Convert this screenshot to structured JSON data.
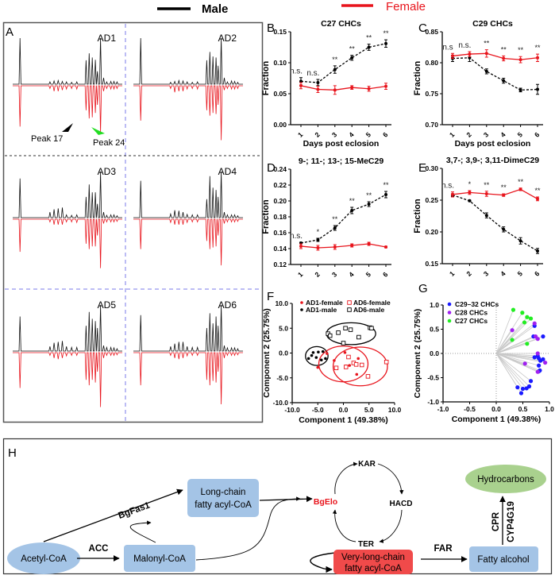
{
  "legend": {
    "male": "Male",
    "female": "Female",
    "male_color": "#000000",
    "female_color": "#e8141c"
  },
  "panel_labels": {
    "A": "A",
    "B": "B",
    "C": "C",
    "D": "D",
    "E": "E",
    "F": "F",
    "G": "G",
    "H": "H"
  },
  "panel_a": {
    "subpanels": [
      "AD1",
      "AD2",
      "AD3",
      "AD4",
      "AD5",
      "AD6"
    ],
    "annotations": {
      "peak17": "Peak 17",
      "peak24": "Peak 24"
    },
    "peak_positions": [
      0.04,
      0.33,
      0.37,
      0.41,
      0.45,
      0.49,
      0.54,
      0.59,
      0.68,
      0.71,
      0.74,
      0.77,
      0.79,
      0.82,
      0.85,
      0.88,
      0.92,
      0.95,
      0.98
    ],
    "male_heights": [
      [
        1,
        0.05,
        0.07,
        0.08,
        0.06,
        0.05,
        0.04,
        0.05,
        0.52,
        0.67,
        0.58,
        0.53,
        0.28,
        1,
        0.14,
        0.05,
        0.06,
        0.06,
        0.05
      ],
      [
        1,
        0.04,
        0.06,
        0.08,
        0.07,
        0.05,
        0.04,
        0.05,
        0.52,
        0.7,
        0.6,
        0.58,
        0.4,
        1,
        0.14,
        0.05,
        0.07,
        0.06,
        0.04
      ],
      [
        0.85,
        0.12,
        0.18,
        0.2,
        0.22,
        0.06,
        0.05,
        0.06,
        0.45,
        0.72,
        0.55,
        0.55,
        0.3,
        1,
        0.12,
        0.05,
        0.06,
        0.06,
        0.04
      ],
      [
        0.8,
        0.08,
        0.16,
        0.15,
        0.12,
        0.07,
        0.06,
        0.06,
        0.4,
        0.9,
        0.65,
        0.6,
        0.45,
        1,
        0.12,
        0.06,
        0.06,
        0.06,
        0.04
      ],
      [
        0.75,
        0.1,
        0.18,
        0.2,
        0.22,
        0.1,
        0.08,
        0.08,
        0.55,
        0.85,
        0.7,
        0.65,
        0.5,
        1,
        0.12,
        0.08,
        0.08,
        0.07,
        0.05
      ],
      [
        0.78,
        0.1,
        0.16,
        0.2,
        0.2,
        0.1,
        0.08,
        0.08,
        0.5,
        0.82,
        0.6,
        0.75,
        0.55,
        1,
        0.12,
        0.07,
        0.07,
        0.07,
        0.05
      ]
    ],
    "female_heights": [
      [
        0.75,
        0.05,
        0.1,
        0.1,
        0.08,
        0.06,
        0.05,
        0.06,
        0.45,
        0.6,
        0.58,
        0.5,
        0.35,
        0.87,
        0.1,
        0.05,
        0.06,
        0.06,
        0.05
      ],
      [
        0.64,
        0.05,
        0.12,
        0.1,
        0.1,
        0.06,
        0.05,
        0.06,
        0.45,
        0.55,
        0.5,
        0.52,
        0.35,
        1,
        0.08,
        0.05,
        0.06,
        0.06,
        0.05
      ],
      [
        0.6,
        0.05,
        0.1,
        0.1,
        0.1,
        0.05,
        0.05,
        0.06,
        0.45,
        0.55,
        0.5,
        0.5,
        0.3,
        0.9,
        0.08,
        0.05,
        0.05,
        0.05,
        0.04
      ],
      [
        0.55,
        0.06,
        0.1,
        0.1,
        0.1,
        0.06,
        0.05,
        0.05,
        0.4,
        0.55,
        0.52,
        0.5,
        0.3,
        0.85,
        0.08,
        0.05,
        0.05,
        0.05,
        0.04
      ],
      [
        0.65,
        0.05,
        0.1,
        0.12,
        0.1,
        0.06,
        0.05,
        0.05,
        0.5,
        0.6,
        0.5,
        0.55,
        0.35,
        1,
        0.1,
        0.05,
        0.05,
        0.05,
        0.04
      ],
      [
        0.6,
        0.05,
        0.1,
        0.12,
        0.1,
        0.06,
        0.05,
        0.05,
        0.5,
        0.6,
        0.52,
        0.55,
        0.35,
        0.95,
        0.1,
        0.05,
        0.05,
        0.05,
        0.04
      ]
    ]
  },
  "chart_data": [
    {
      "id": "B",
      "type": "line",
      "title": "C27 CHCs",
      "xlabel": "Days post eclosion",
      "ylabel": "Fraction",
      "categories": [
        "1",
        "2",
        "3",
        "4",
        "5",
        "6"
      ],
      "ylim": [
        0,
        0.15
      ],
      "yticks": [
        "0.00",
        "0.05",
        "0.10",
        "0.15"
      ],
      "series": [
        {
          "name": "Male",
          "values": [
            0.07,
            0.068,
            0.089,
            0.108,
            0.125,
            0.131
          ],
          "err": [
            0.006,
            0.005,
            0.006,
            0.004,
            0.005,
            0.006
          ]
        },
        {
          "name": "Female",
          "values": [
            0.063,
            0.057,
            0.056,
            0.06,
            0.058,
            0.062
          ],
          "err": [
            0.005,
            0.005,
            0.007,
            0.003,
            0.004,
            0.005
          ]
        }
      ],
      "significance": [
        "n.s.",
        "n.s.",
        "**",
        "**",
        "**",
        "**"
      ]
    },
    {
      "id": "C",
      "type": "line",
      "title": "C29 CHCs",
      "xlabel": "Days post eclosion",
      "ylabel": "Fraction",
      "categories": [
        "1",
        "2",
        "3",
        "4",
        "5",
        "6"
      ],
      "ylim": [
        0.7,
        0.85
      ],
      "yticks": [
        "0.70",
        "0.75",
        "0.80",
        "0.85"
      ],
      "series": [
        {
          "name": "Male",
          "values": [
            0.807,
            0.808,
            0.786,
            0.771,
            0.756,
            0.757
          ],
          "err": [
            0.005,
            0.006,
            0.004,
            0.004,
            0.003,
            0.008
          ]
        },
        {
          "name": "Female",
          "values": [
            0.811,
            0.814,
            0.815,
            0.807,
            0.805,
            0.808
          ],
          "err": [
            0.004,
            0.004,
            0.006,
            0.004,
            0.005,
            0.006
          ]
        }
      ],
      "significance": [
        "n.s",
        "n.s.",
        "**",
        "**",
        "**",
        "**"
      ]
    },
    {
      "id": "D",
      "type": "line",
      "title": "9-; 11-; 13-; 15-MeC29",
      "xlabel": "",
      "ylabel": "Fraction",
      "categories": [
        "1",
        "2",
        "3",
        "4",
        "5",
        "6"
      ],
      "ylim": [
        0.12,
        0.24
      ],
      "yticks": [
        "0.12",
        "0.14",
        "0.16",
        "0.18",
        "0.20",
        "0.22",
        "0.24"
      ],
      "series": [
        {
          "name": "Male",
          "values": [
            0.147,
            0.151,
            0.166,
            0.188,
            0.196,
            0.208
          ],
          "err": [
            0.001,
            0.002,
            0.003,
            0.004,
            0.003,
            0.004
          ]
        },
        {
          "name": "Female",
          "values": [
            0.143,
            0.141,
            0.142,
            0.144,
            0.146,
            0.142
          ],
          "err": [
            0.003,
            0.003,
            0.003,
            0.002,
            0.002,
            0.001
          ]
        }
      ],
      "significance": [
        "n.s.",
        "*",
        "**",
        "**",
        "**",
        "**"
      ]
    },
    {
      "id": "E",
      "type": "line",
      "title": "3,7-; 3,9-; 3,11-DimeC29",
      "xlabel": "",
      "ylabel": "Fraction",
      "categories": [
        "1",
        "2",
        "3",
        "4",
        "5",
        "6"
      ],
      "ylim": [
        0.15,
        0.3
      ],
      "yticks": [
        "0.15",
        "0.20",
        "0.25",
        "0.30"
      ],
      "series": [
        {
          "name": "Male",
          "values": [
            0.258,
            0.249,
            0.226,
            0.204,
            0.186,
            0.17
          ],
          "err": [
            0.002,
            0.001,
            0.004,
            0.004,
            0.005,
            0.004
          ]
        },
        {
          "name": "Female",
          "values": [
            0.259,
            0.262,
            0.26,
            0.258,
            0.267,
            0.252
          ],
          "err": [
            0.004,
            0.003,
            0.004,
            0.002,
            0.002,
            0.003
          ]
        }
      ],
      "significance": [
        "n.s.",
        "*",
        "**",
        "**",
        "**",
        "**"
      ]
    },
    {
      "id": "F",
      "type": "scatter",
      "xlabel": "Component 1 (49.38%)",
      "ylabel": "Component 2 (25.75%)",
      "xlim": [
        -10,
        10
      ],
      "ylim": [
        -10,
        10
      ],
      "xticks": [
        "-10.0",
        "-5.0",
        "0.0",
        "5.0",
        "10.0"
      ],
      "yticks": [
        "-10.0",
        "-5.0",
        "0.0",
        "5.0",
        "10.0"
      ],
      "legend_position": "top",
      "series": [
        {
          "name": "AD1-female",
          "marker": "filled-circle",
          "color": "#e8141c",
          "points": [
            [
              -3.2,
              -0.1
            ],
            [
              -1.8,
              -1.5
            ],
            [
              -5.0,
              -2.9
            ],
            [
              0.3,
              0.1
            ],
            [
              1.2,
              -2.5
            ],
            [
              2.9,
              -1.1
            ],
            [
              2.6,
              -4.3
            ],
            [
              0.5,
              -2.6
            ]
          ]
        },
        {
          "name": "AD1-male",
          "marker": "filled-circle",
          "color": "#000000",
          "points": [
            [
              -6.8,
              -1.1
            ],
            [
              -5.9,
              0.1
            ],
            [
              -4.9,
              0.2
            ],
            [
              -4.0,
              0.3
            ],
            [
              -3.5,
              -1.1
            ],
            [
              -5.3,
              -0.9
            ],
            [
              -4.3,
              -1.4
            ],
            [
              -6.2,
              -0.5
            ]
          ]
        },
        {
          "name": "AD6-female",
          "marker": "open-square",
          "color": "#e8141c",
          "points": [
            [
              1.0,
              -0.8
            ],
            [
              -1.4,
              -3.0
            ],
            [
              2.0,
              -2.0
            ],
            [
              2.5,
              -2.3
            ],
            [
              3.6,
              -2.4
            ],
            [
              4.8,
              -4.7
            ],
            [
              8.4,
              -1.8
            ],
            [
              0.5,
              -2.8
            ]
          ]
        },
        {
          "name": "AD6-male",
          "marker": "open-square",
          "color": "#000000",
          "points": [
            [
              -3.0,
              3.9
            ],
            [
              -2.6,
              3.5
            ],
            [
              -1.0,
              4.1
            ],
            [
              0.4,
              5.0
            ],
            [
              1.4,
              4.7
            ],
            [
              3.0,
              3.2
            ],
            [
              0.0,
              2.0
            ],
            [
              5.2,
              5.1
            ],
            [
              5.5,
              5.0
            ]
          ]
        }
      ],
      "ellipses": [
        {
          "group": "AD1-male",
          "center": [
            -5.2,
            -0.6
          ],
          "radii": [
            2.2,
            1.9
          ],
          "color": "#000000"
        },
        {
          "group": "AD6-male",
          "center": [
            1.5,
            3.9
          ],
          "radii": [
            4.8,
            2.2
          ],
          "color": "#000000"
        },
        {
          "group": "AD1-female",
          "center": [
            0.0,
            -2.2
          ],
          "radii": [
            4.8,
            3.6
          ],
          "color": "#e8141c"
        },
        {
          "group": "AD6-female",
          "center": [
            3.3,
            -2.7
          ],
          "radii": [
            5.3,
            3.9
          ],
          "color": "#e8141c"
        }
      ]
    },
    {
      "id": "G",
      "type": "scatter",
      "subtype": "loadings",
      "xlabel": "Component 1 (49.38%)",
      "ylabel": "Component 2 (25.75%)",
      "xlim": [
        -1,
        1
      ],
      "ylim": [
        -1,
        1
      ],
      "xticks": [
        "-1.0",
        "-0.5",
        "0.0",
        "0.5",
        "1.0"
      ],
      "yticks": [
        "-1.0",
        "-0.5",
        "0.0",
        "0.5",
        "1.0"
      ],
      "legend_position": "top-left",
      "series": [
        {
          "name": "C29–32 CHCs",
          "color": "#1a1aff",
          "points": [
            [
              0.72,
              0.57
            ],
            [
              0.7,
              0.35
            ],
            [
              0.88,
              0.35
            ],
            [
              0.72,
              -0.08
            ],
            [
              0.8,
              -0.1
            ],
            [
              0.83,
              -0.15
            ],
            [
              0.88,
              -0.12
            ],
            [
              0.8,
              -0.25
            ],
            [
              0.82,
              -0.35
            ],
            [
              0.8,
              -0.37
            ],
            [
              0.65,
              -0.57
            ],
            [
              0.62,
              -0.68
            ],
            [
              0.57,
              -0.72
            ],
            [
              0.5,
              -0.73
            ],
            [
              0.4,
              -0.7
            ],
            [
              0.47,
              -0.82
            ],
            [
              0.78,
              -0.05
            ]
          ]
        },
        {
          "name": "C28 CHCs",
          "color": "#a020f0",
          "points": [
            [
              0.3,
              0.48
            ],
            [
              0.72,
              0.62
            ],
            [
              0.74,
              0.35
            ],
            [
              0.78,
              0.3
            ],
            [
              0.78,
              0.0
            ],
            [
              0.54,
              -0.21
            ],
            [
              0.78,
              -0.38
            ],
            [
              0.92,
              -0.19
            ]
          ]
        },
        {
          "name": "C27 CHCs",
          "color": "#22ee22",
          "points": [
            [
              0.32,
              0.9
            ],
            [
              0.49,
              0.84
            ],
            [
              0.58,
              0.75
            ],
            [
              0.65,
              0.72
            ],
            [
              0.53,
              0.64
            ],
            [
              0.3,
              0.28
            ],
            [
              0.58,
              0.2
            ]
          ]
        }
      ]
    }
  ],
  "pathway": {
    "acetyl_coa": "Acetyl-CoA",
    "acc": "ACC",
    "malonyl_coa": "Malonyl-CoA",
    "bgfas1": "BgFas1",
    "long_chain_1": "Long-chain",
    "long_chain_2": "fatty acyl-CoA",
    "bgelo": "BgElo",
    "kar": "KAR",
    "hacd": "HACD",
    "ter": "TER",
    "vlc_1": "Very-long-chain",
    "vlc_2": "fatty acyl-CoA",
    "far": "FAR",
    "fatty_alcohol": "Fatty alcohol",
    "cpr": "CPR",
    "cyp4g19": "CYP4G19",
    "hydrocarbons": "Hydrocarbons",
    "colors": {
      "blue_box": "#a4c4e6",
      "red_box": "#f04a4a",
      "green_ellipse": "#a9d18e",
      "bgelo_text": "#e8141c"
    }
  }
}
